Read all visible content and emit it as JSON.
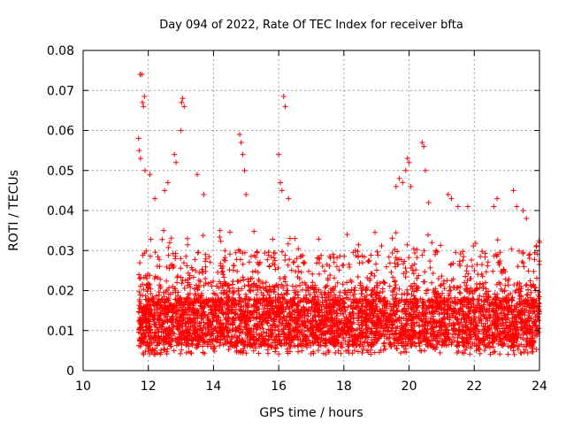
{
  "chart_data": {
    "type": "scatter",
    "title": "Day 094 of 2022, Rate Of TEC Index for receiver bfta",
    "xlabel": "GPS time / hours",
    "ylabel": "ROTI / TECUs",
    "xlim": [
      10,
      24
    ],
    "ylim": [
      0,
      0.08
    ],
    "x_ticks": [
      "10",
      "12",
      "14",
      "16",
      "18",
      "20",
      "22",
      "24"
    ],
    "y_ticks": [
      "0",
      "0.01",
      "0.02",
      "0.03",
      "0.04",
      "0.05",
      "0.06",
      "0.07",
      "0.08"
    ],
    "grid": true,
    "marker": "+",
    "series": [
      {
        "color": "#ff0000",
        "x_range": [
          11.7,
          24.0
        ],
        "base_level": 0.013,
        "dense_points_per_hour": 380,
        "notable_points": [
          [
            11.75,
            0.074
          ],
          [
            11.8,
            0.074
          ],
          [
            11.82,
            0.067
          ],
          [
            11.85,
            0.066
          ],
          [
            11.88,
            0.0685
          ],
          [
            11.7,
            0.058
          ],
          [
            11.72,
            0.055
          ],
          [
            11.76,
            0.053
          ],
          [
            11.9,
            0.05
          ],
          [
            12.05,
            0.049
          ],
          [
            12.2,
            0.043
          ],
          [
            12.5,
            0.045
          ],
          [
            12.6,
            0.047
          ],
          [
            12.8,
            0.054
          ],
          [
            12.85,
            0.052
          ],
          [
            13.0,
            0.06
          ],
          [
            13.02,
            0.067
          ],
          [
            13.05,
            0.068
          ],
          [
            13.1,
            0.066
          ],
          [
            13.5,
            0.049
          ],
          [
            13.7,
            0.044
          ],
          [
            14.2,
            0.035
          ],
          [
            14.8,
            0.059
          ],
          [
            14.85,
            0.057
          ],
          [
            14.9,
            0.054
          ],
          [
            14.95,
            0.05
          ],
          [
            15.0,
            0.044
          ],
          [
            16.0,
            0.054
          ],
          [
            16.05,
            0.047
          ],
          [
            16.1,
            0.045
          ],
          [
            16.15,
            0.0685
          ],
          [
            16.2,
            0.066
          ],
          [
            16.3,
            0.043
          ],
          [
            16.5,
            0.033
          ],
          [
            18.1,
            0.034
          ],
          [
            19.6,
            0.046
          ],
          [
            19.7,
            0.048
          ],
          [
            19.8,
            0.047
          ],
          [
            19.9,
            0.05
          ],
          [
            19.95,
            0.053
          ],
          [
            20.0,
            0.052
          ],
          [
            20.05,
            0.046
          ],
          [
            20.4,
            0.057
          ],
          [
            20.45,
            0.056
          ],
          [
            20.5,
            0.05
          ],
          [
            20.6,
            0.042
          ],
          [
            20.7,
            0.032
          ],
          [
            20.8,
            0.029
          ],
          [
            21.2,
            0.044
          ],
          [
            21.3,
            0.043
          ],
          [
            21.5,
            0.041
          ],
          [
            21.8,
            0.041
          ],
          [
            22.6,
            0.041
          ],
          [
            22.7,
            0.043
          ],
          [
            23.2,
            0.045
          ],
          [
            23.3,
            0.041
          ],
          [
            23.5,
            0.04
          ],
          [
            23.6,
            0.038
          ],
          [
            23.9,
            0.031
          ],
          [
            24.0,
            0.032
          ]
        ]
      }
    ]
  }
}
